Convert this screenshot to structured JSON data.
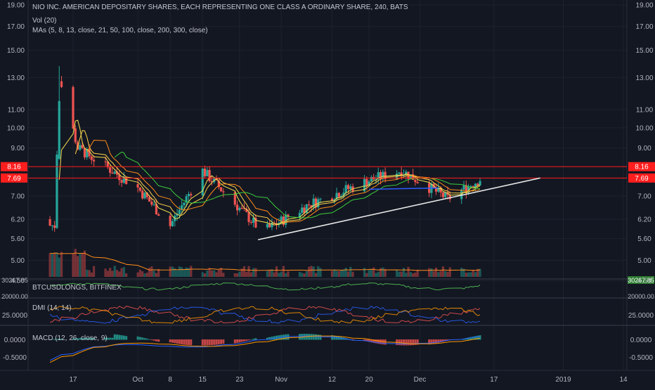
{
  "header": {
    "symbol_line": "NIO INC. AMERICAN DEPOSITARY SHARES, EACH REPRESENTING ONE CLASS A ORDINARY SHARE, 240, BATS",
    "vol_label": "Vol (20)",
    "mas_label": "MAs (5, 8, 13, close, 21, 50, 100, close, 200, 300, close)"
  },
  "panes": {
    "btc_label": "BTCUSDLONGS, BITFINEX",
    "dmi_label": "DMI (14, 14)",
    "macd_label": "MACD (12, 26, close, 9)"
  },
  "colors": {
    "background": "#131722",
    "up": "#26a69a",
    "down": "#ef5350",
    "resistance": "#ff1e1e",
    "trendline": "#e6e6e6",
    "ma_yellow": "#f5e050",
    "ma_green": "#3ccf3c",
    "ma_orange": "#ff8c1a",
    "ma_blue": "#2b5cff"
  },
  "chart_data": [
    {
      "type": "candlestick",
      "title": "NIO INC. AMERICAN DEPOSITARY SHARES, EACH REPRESENTING ONE CLASS A ORDINARY SHARE, 240, BATS",
      "price_axis_labels": [
        "19.00",
        "17.00",
        "15.00",
        "13.00",
        "11.00",
        "10.00",
        "9.00",
        "8.16",
        "7.69",
        "7.00",
        "6.20",
        "5.60",
        "5.00",
        "4.50"
      ],
      "price_levels": [
        19.0,
        17.0,
        15.0,
        13.0,
        11.0,
        10.0,
        9.0,
        7.0,
        6.2,
        5.6,
        5.0,
        4.5
      ],
      "scale": "log",
      "ylim": [
        4.2,
        19.5
      ],
      "horizontal_levels": [
        {
          "value": 8.16,
          "label": "8.16",
          "color": "#ff1e1e"
        },
        {
          "value": 7.69,
          "label": "7.69",
          "color": "#ff1e1e"
        }
      ],
      "trendline": {
        "from": {
          "date": "Oct 27",
          "price": 5.57
        },
        "to": {
          "date": "Dec 27",
          "price": 7.69
        }
      },
      "x_tick_labels": [
        "17",
        "Oct",
        "8",
        "15",
        "23",
        "Nov",
        "12",
        "20",
        "Dec",
        "17",
        "2019",
        "14"
      ],
      "ohlc_approx": {
        "start_date": "Sep 12",
        "end_date": "Dec 14",
        "key_points": [
          {
            "date": "Sep 13",
            "price": 6.0
          },
          {
            "date": "Sep 14",
            "price": 13.0
          },
          {
            "date": "Sep 18",
            "price": 9.0
          },
          {
            "date": "Oct 1",
            "price": 7.3
          },
          {
            "date": "Oct 8",
            "price": 6.0
          },
          {
            "date": "Oct 15",
            "price": 8.0
          },
          {
            "date": "Oct 28",
            "price": 5.8
          },
          {
            "date": "Nov 7",
            "price": 6.7
          },
          {
            "date": "Nov 20",
            "price": 7.6
          },
          {
            "date": "Nov 27",
            "price": 8.0
          },
          {
            "date": "Dec 7",
            "price": 6.9
          },
          {
            "date": "Dec 14",
            "price": 7.65
          }
        ]
      }
    },
    {
      "type": "line",
      "title": "BTCUSDLONGS, BITFINEX",
      "axis_labels": [
        "30267.85",
        "20000.00"
      ],
      "last_value_label": "30267.85"
    },
    {
      "type": "line",
      "title": "DMI (14, 14)",
      "axis_labels": [
        "25.0000"
      ]
    },
    {
      "type": "bar",
      "title": "MACD (12, 26, close, 9)",
      "axis_labels": [
        "0.0000",
        "-0.5000"
      ]
    }
  ]
}
